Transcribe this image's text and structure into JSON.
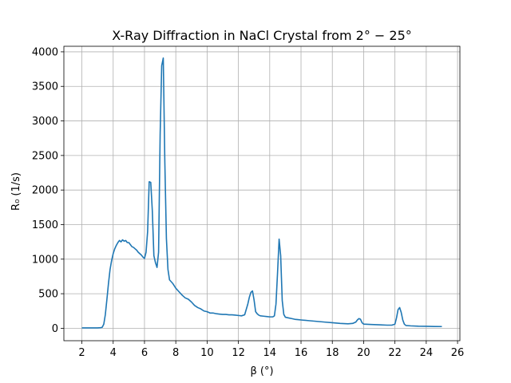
{
  "chart_data": {
    "type": "line",
    "title": "X-Ray Diffraction in NaCl Crystal from 2° − 25°",
    "xlabel": "β   (°)",
    "ylabel": "R₀   (1/s)",
    "xlim": [
      0.85,
      26.15
    ],
    "ylim": [
      -180,
      4080
    ],
    "xticks": [
      2,
      4,
      6,
      8,
      10,
      12,
      14,
      16,
      18,
      20,
      22,
      24,
      26
    ],
    "yticks": [
      0,
      500,
      1000,
      1500,
      2000,
      2500,
      3000,
      3500,
      4000
    ],
    "grid": true,
    "series": [
      {
        "color": "#1f77b4",
        "x": [
          2.0,
          2.5,
          3.0,
          3.2,
          3.3,
          3.4,
          3.5,
          3.6,
          3.7,
          3.8,
          3.9,
          4.0,
          4.1,
          4.2,
          4.3,
          4.4,
          4.5,
          4.6,
          4.7,
          4.8,
          4.9,
          5.0,
          5.1,
          5.2,
          5.3,
          5.4,
          5.5,
          5.6,
          5.7,
          5.8,
          5.9,
          6.0,
          6.1,
          6.2,
          6.3,
          6.4,
          6.5,
          6.6,
          6.7,
          6.8,
          6.9,
          7.0,
          7.1,
          7.2,
          7.3,
          7.4,
          7.5,
          7.6,
          7.8,
          8.0,
          8.2,
          8.4,
          8.6,
          8.8,
          9.0,
          9.2,
          9.4,
          9.6,
          9.8,
          10.0,
          10.2,
          10.4,
          10.6,
          10.8,
          11.0,
          11.2,
          11.4,
          11.6,
          11.8,
          12.0,
          12.2,
          12.4,
          12.6,
          12.7,
          12.8,
          12.9,
          13.0,
          13.1,
          13.2,
          13.3,
          13.4,
          13.6,
          13.8,
          14.0,
          14.2,
          14.3,
          14.4,
          14.5,
          14.6,
          14.7,
          14.8,
          14.9,
          15.0,
          15.2,
          15.4,
          15.6,
          15.8,
          16.0,
          16.5,
          17.0,
          17.5,
          18.0,
          18.5,
          19.0,
          19.3,
          19.5,
          19.6,
          19.7,
          19.8,
          19.9,
          20.0,
          20.5,
          21.0,
          21.5,
          21.8,
          22.0,
          22.1,
          22.2,
          22.3,
          22.4,
          22.5,
          22.6,
          22.7,
          23.0,
          23.5,
          24.0,
          24.5,
          25.0
        ],
        "y": [
          5,
          5,
          5,
          8,
          15,
          60,
          200,
          420,
          650,
          850,
          980,
          1080,
          1150,
          1200,
          1240,
          1270,
          1250,
          1280,
          1260,
          1270,
          1240,
          1240,
          1210,
          1180,
          1170,
          1150,
          1130,
          1100,
          1080,
          1060,
          1030,
          1010,
          1100,
          1400,
          2120,
          2110,
          1700,
          1050,
          950,
          880,
          1100,
          2800,
          3800,
          3910,
          2400,
          1300,
          850,
          700,
          650,
          580,
          530,
          480,
          440,
          420,
          380,
          330,
          300,
          280,
          250,
          240,
          220,
          220,
          210,
          205,
          200,
          200,
          195,
          195,
          190,
          185,
          180,
          195,
          350,
          450,
          520,
          540,
          410,
          240,
          210,
          190,
          180,
          175,
          170,
          165,
          165,
          180,
          350,
          800,
          1290,
          1050,
          400,
          200,
          160,
          150,
          140,
          130,
          125,
          120,
          110,
          100,
          90,
          80,
          70,
          65,
          70,
          90,
          120,
          140,
          130,
          80,
          60,
          55,
          50,
          45,
          45,
          60,
          150,
          270,
          300,
          230,
          120,
          60,
          40,
          35,
          30,
          28,
          26,
          25
        ]
      }
    ]
  }
}
